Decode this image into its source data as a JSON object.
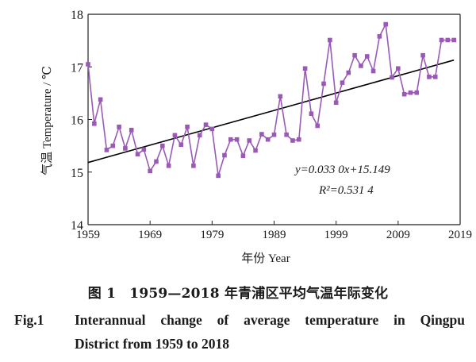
{
  "chart_data": {
    "type": "line",
    "ylabel": "气温 Temperature / ℃",
    "xlabel": "年份 Year",
    "xlim": [
      1959,
      2019
    ],
    "ylim": [
      14,
      18
    ],
    "x_ticks": [
      "1959",
      "1969",
      "1979",
      "1989",
      "1999",
      "2009",
      "2019"
    ],
    "y_ticks": [
      "14",
      "15",
      "16",
      "17",
      "18"
    ],
    "years": [
      1959,
      1960,
      1961,
      1962,
      1963,
      1964,
      1965,
      1966,
      1967,
      1968,
      1969,
      1970,
      1971,
      1972,
      1973,
      1974,
      1975,
      1976,
      1977,
      1978,
      1979,
      1980,
      1981,
      1982,
      1983,
      1984,
      1985,
      1986,
      1987,
      1988,
      1989,
      1990,
      1991,
      1992,
      1993,
      1994,
      1995,
      1996,
      1997,
      1998,
      1999,
      2000,
      2001,
      2002,
      2003,
      2004,
      2005,
      2006,
      2007,
      2008,
      2009,
      2010,
      2011,
      2012,
      2013,
      2014,
      2015,
      2016,
      2017,
      2018
    ],
    "series": [
      {
        "values": [
          17.05,
          15.92,
          16.38,
          15.42,
          15.5,
          15.86,
          15.45,
          15.8,
          15.34,
          15.43,
          15.02,
          15.2,
          15.5,
          15.12,
          15.7,
          15.52,
          15.86,
          15.12,
          15.7,
          15.9,
          15.82,
          14.93,
          15.32,
          15.62,
          15.62,
          15.31,
          15.6,
          15.41,
          15.72,
          15.62,
          15.71,
          16.44,
          15.71,
          15.6,
          15.62,
          16.97,
          16.11,
          15.88,
          16.68,
          17.51,
          16.32,
          16.7,
          16.89,
          17.22,
          17.02,
          17.2,
          16.92,
          17.58,
          17.81,
          16.8,
          16.97,
          16.48,
          16.51,
          16.51,
          17.22,
          16.81,
          16.81,
          17.51,
          17.51,
          17.51
        ],
        "color": "#9b59b6"
      }
    ],
    "trendline": {
      "slope": 0.033,
      "intercept": 15.149,
      "color": "#000000"
    },
    "equation": "y=0.033 0x+15.149",
    "r_squared": "R²=0.531 4"
  },
  "caption": {
    "cn": "图 1　1959—2018 年青浦区平均气温年际变化",
    "fig_label": "Fig.1",
    "en_line1": "Interannual change of average temperature in Qingpu",
    "en_line2": "District from 1959 to 2018"
  }
}
